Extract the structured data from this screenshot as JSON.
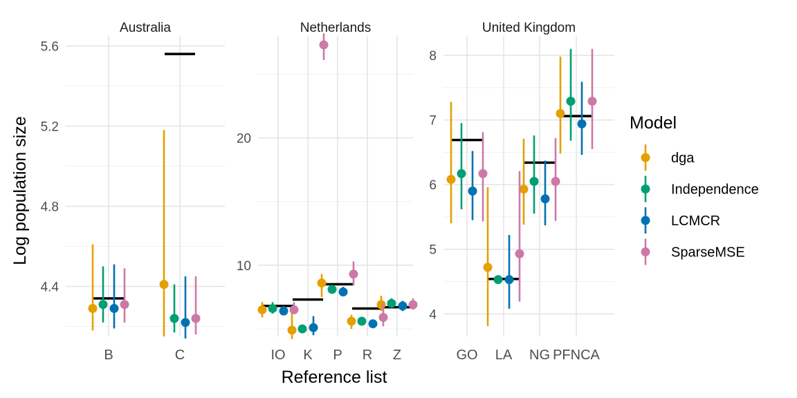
{
  "chart_data": {
    "type": "scatter",
    "subtype": "faceted point-range with reference lines",
    "xlabel": "Reference list",
    "ylabel": "Log population size",
    "legend": {
      "title": "Model",
      "position": "right",
      "entries": [
        {
          "name": "dga",
          "color": "#E69F00"
        },
        {
          "name": "Independence",
          "color": "#009E73"
        },
        {
          "name": "LCMCR",
          "color": "#0072B2"
        },
        {
          "name": "SparseMSE",
          "color": "#CC79A7"
        }
      ]
    },
    "reference_line_color": "#000000",
    "grid": true,
    "facets": [
      {
        "title": "Australia",
        "ylim": [
          4.15,
          5.65
        ],
        "yticks": [
          4.4,
          4.8,
          5.2,
          5.6
        ],
        "ytick_labels": [
          "4.4",
          "4.8",
          "5.2",
          "5.6"
        ],
        "categories": [
          "B",
          "C"
        ],
        "reference": [
          4.34,
          5.56
        ],
        "series": [
          {
            "name": "dga",
            "est": [
              4.29,
              4.41
            ],
            "lo": [
              4.18,
              4.15
            ],
            "hi": [
              4.61,
              5.18
            ]
          },
          {
            "name": "Independence",
            "est": [
              4.31,
              4.24
            ],
            "lo": [
              4.22,
              4.17
            ],
            "hi": [
              4.5,
              4.41
            ]
          },
          {
            "name": "LCMCR",
            "est": [
              4.29,
              4.22
            ],
            "lo": [
              4.19,
              4.14
            ],
            "hi": [
              4.51,
              4.45
            ]
          },
          {
            "name": "SparseMSE",
            "est": [
              4.31,
              4.24
            ],
            "lo": [
              4.22,
              4.16
            ],
            "hi": [
              4.49,
              4.45
            ]
          }
        ]
      },
      {
        "title": "Netherlands",
        "ylim": [
          4.4,
          28.0
        ],
        "yticks": [
          10,
          20
        ],
        "ytick_labels": [
          "10",
          "20"
        ],
        "categories": [
          "IO",
          "K",
          "P",
          "R",
          "Z"
        ],
        "reference": [
          6.8,
          7.3,
          8.5,
          6.6,
          6.7
        ],
        "series": [
          {
            "name": "dga",
            "est": [
              6.5,
              4.9,
              8.6,
              5.6,
              6.9
            ],
            "lo": [
              5.9,
              4.2,
              7.5,
              5.0,
              6.4
            ],
            "hi": [
              7.1,
              6.3,
              9.3,
              6.1,
              7.6
            ]
          },
          {
            "name": "Independence",
            "est": [
              6.6,
              5.0,
              8.1,
              5.6,
              7.0
            ],
            "lo": [
              6.2,
              4.7,
              7.9,
              5.4,
              6.7
            ],
            "hi": [
              7.1,
              5.3,
              8.4,
              5.8,
              7.4
            ]
          },
          {
            "name": "LCMCR",
            "est": [
              6.4,
              5.1,
              7.9,
              5.4,
              6.8
            ],
            "lo": [
              6.1,
              4.5,
              7.6,
              5.1,
              6.4
            ],
            "hi": [
              6.8,
              6.0,
              8.3,
              5.7,
              7.2
            ]
          },
          {
            "name": "SparseMSE",
            "est": [
              6.5,
              27.3,
              9.3,
              5.9,
              6.9
            ],
            "lo": [
              6.2,
              26.1,
              8.4,
              5.2,
              6.5
            ],
            "hi": [
              7.1,
              28.2,
              10.3,
              7.0,
              7.4
            ]
          }
        ]
      },
      {
        "title": "United Kingdom",
        "ylim": [
          3.65,
          8.3
        ],
        "yticks": [
          4,
          5,
          6,
          7,
          8
        ],
        "ytick_labels": [
          "4",
          "5",
          "6",
          "7",
          "8"
        ],
        "categories": [
          "GO",
          "LA",
          "NG",
          "PFNCA"
        ],
        "category_labels": [
          "GO",
          "LA",
          "NG",
          "PFNCA"
        ],
        "reference": [
          6.69,
          4.54,
          6.34,
          7.06
        ],
        "series": [
          {
            "name": "dga",
            "est": [
              6.08,
              4.72,
              5.93,
              7.1
            ],
            "lo": [
              5.4,
              3.81,
              5.38,
              6.48
            ],
            "hi": [
              7.28,
              5.96,
              6.71,
              7.98
            ]
          },
          {
            "name": "Independence",
            "est": [
              6.17,
              4.53,
              6.05,
              7.29
            ],
            "lo": [
              5.62,
              4.52,
              5.55,
              6.68
            ],
            "hi": [
              6.95,
              4.54,
              6.76,
              8.1
            ]
          },
          {
            "name": "LCMCR",
            "est": [
              5.9,
              4.53,
              5.78,
              6.94
            ],
            "lo": [
              5.45,
              4.08,
              5.37,
              6.46
            ],
            "hi": [
              6.52,
              5.22,
              6.37,
              7.59
            ]
          },
          {
            "name": "SparseMSE",
            "est": [
              6.17,
              4.93,
              6.05,
              7.29
            ],
            "lo": [
              5.43,
              4.19,
              5.44,
              6.55
            ],
            "hi": [
              6.81,
              6.21,
              6.72,
              8.1
            ]
          }
        ]
      }
    ]
  }
}
